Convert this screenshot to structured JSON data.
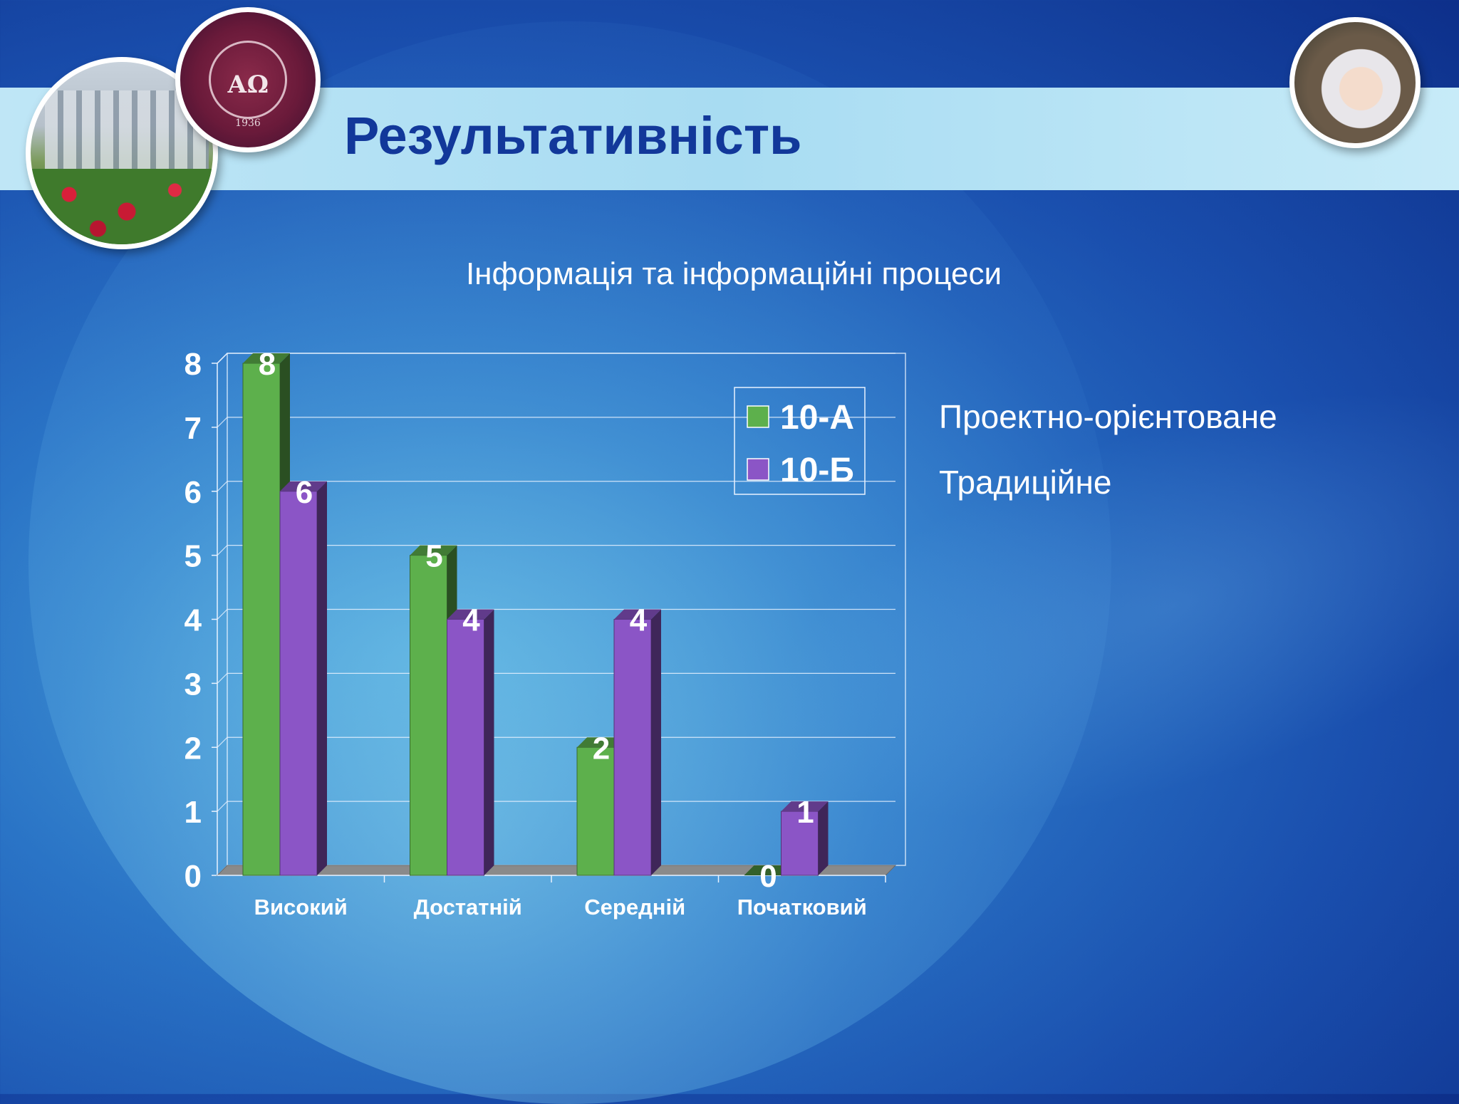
{
  "slide": {
    "title": "Результативність",
    "subtitle": "Інформація та інформаційні процеси",
    "notes": [
      "Проектно-орієнтоване",
      "Традиційне"
    ]
  },
  "seal": {
    "letters": "АΩ",
    "year": "1936"
  },
  "chart_data": {
    "type": "bar",
    "title": "",
    "xlabel": "",
    "ylabel": "",
    "categories": [
      "Високий",
      "Достатній",
      "Середній",
      "Початковий"
    ],
    "series": [
      {
        "name": "10-А",
        "values": [
          8,
          5,
          2,
          0
        ],
        "color": "#5db04c"
      },
      {
        "name": "10-Б",
        "values": [
          6,
          4,
          4,
          1
        ],
        "color": "#8b55c6"
      }
    ],
    "ylim": [
      0,
      8
    ],
    "yticks": [
      0,
      1,
      2,
      3,
      4,
      5,
      6,
      7,
      8
    ],
    "grid": true,
    "legend": "top-right",
    "data_labels": true,
    "style": "3d"
  }
}
